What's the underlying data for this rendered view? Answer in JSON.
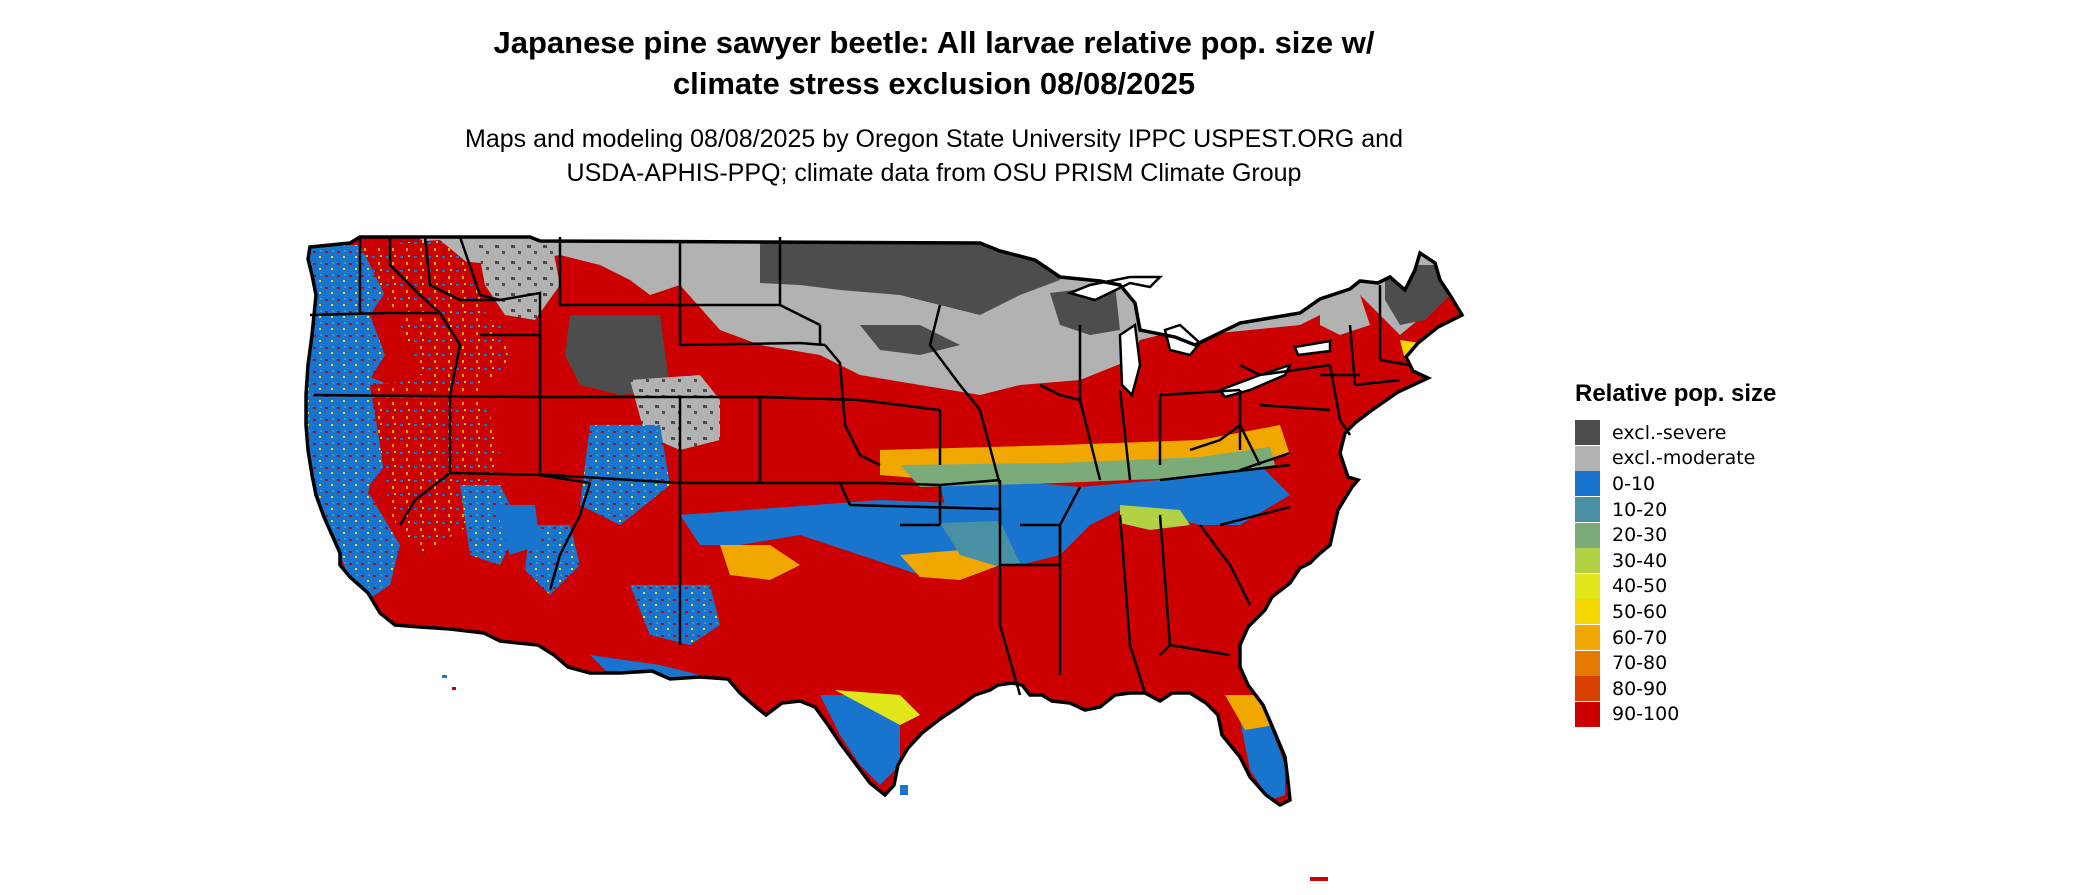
{
  "title": {
    "line1": "Japanese pine sawyer beetle: All larvae relative pop. size w/",
    "line2": "climate stress exclusion 08/08/2025"
  },
  "subtitle": {
    "line1": "Maps and modeling 08/08/2025 by Oregon State University IPPC USPEST.ORG and",
    "line2": "USDA-APHIS-PPQ; climate data from OSU PRISM Climate Group"
  },
  "legend": {
    "title": "Relative pop. size",
    "items": [
      {
        "label": "excl.-severe",
        "color": "#4d4d4d"
      },
      {
        "label": "excl.-moderate",
        "color": "#b2b2b2"
      },
      {
        "label": "0-10",
        "color": "#1874cd"
      },
      {
        "label": "10-20",
        "color": "#4a90a4"
      },
      {
        "label": "20-30",
        "color": "#7bab78"
      },
      {
        "label": "30-40",
        "color": "#b2d144"
      },
      {
        "label": "40-50",
        "color": "#e0e61a"
      },
      {
        "label": "50-60",
        "color": "#f5d800"
      },
      {
        "label": "60-70",
        "color": "#f0a800"
      },
      {
        "label": "70-80",
        "color": "#e57a00"
      },
      {
        "label": "80-90",
        "color": "#d94000"
      },
      {
        "label": "90-100",
        "color": "#cc0000"
      }
    ]
  }
}
